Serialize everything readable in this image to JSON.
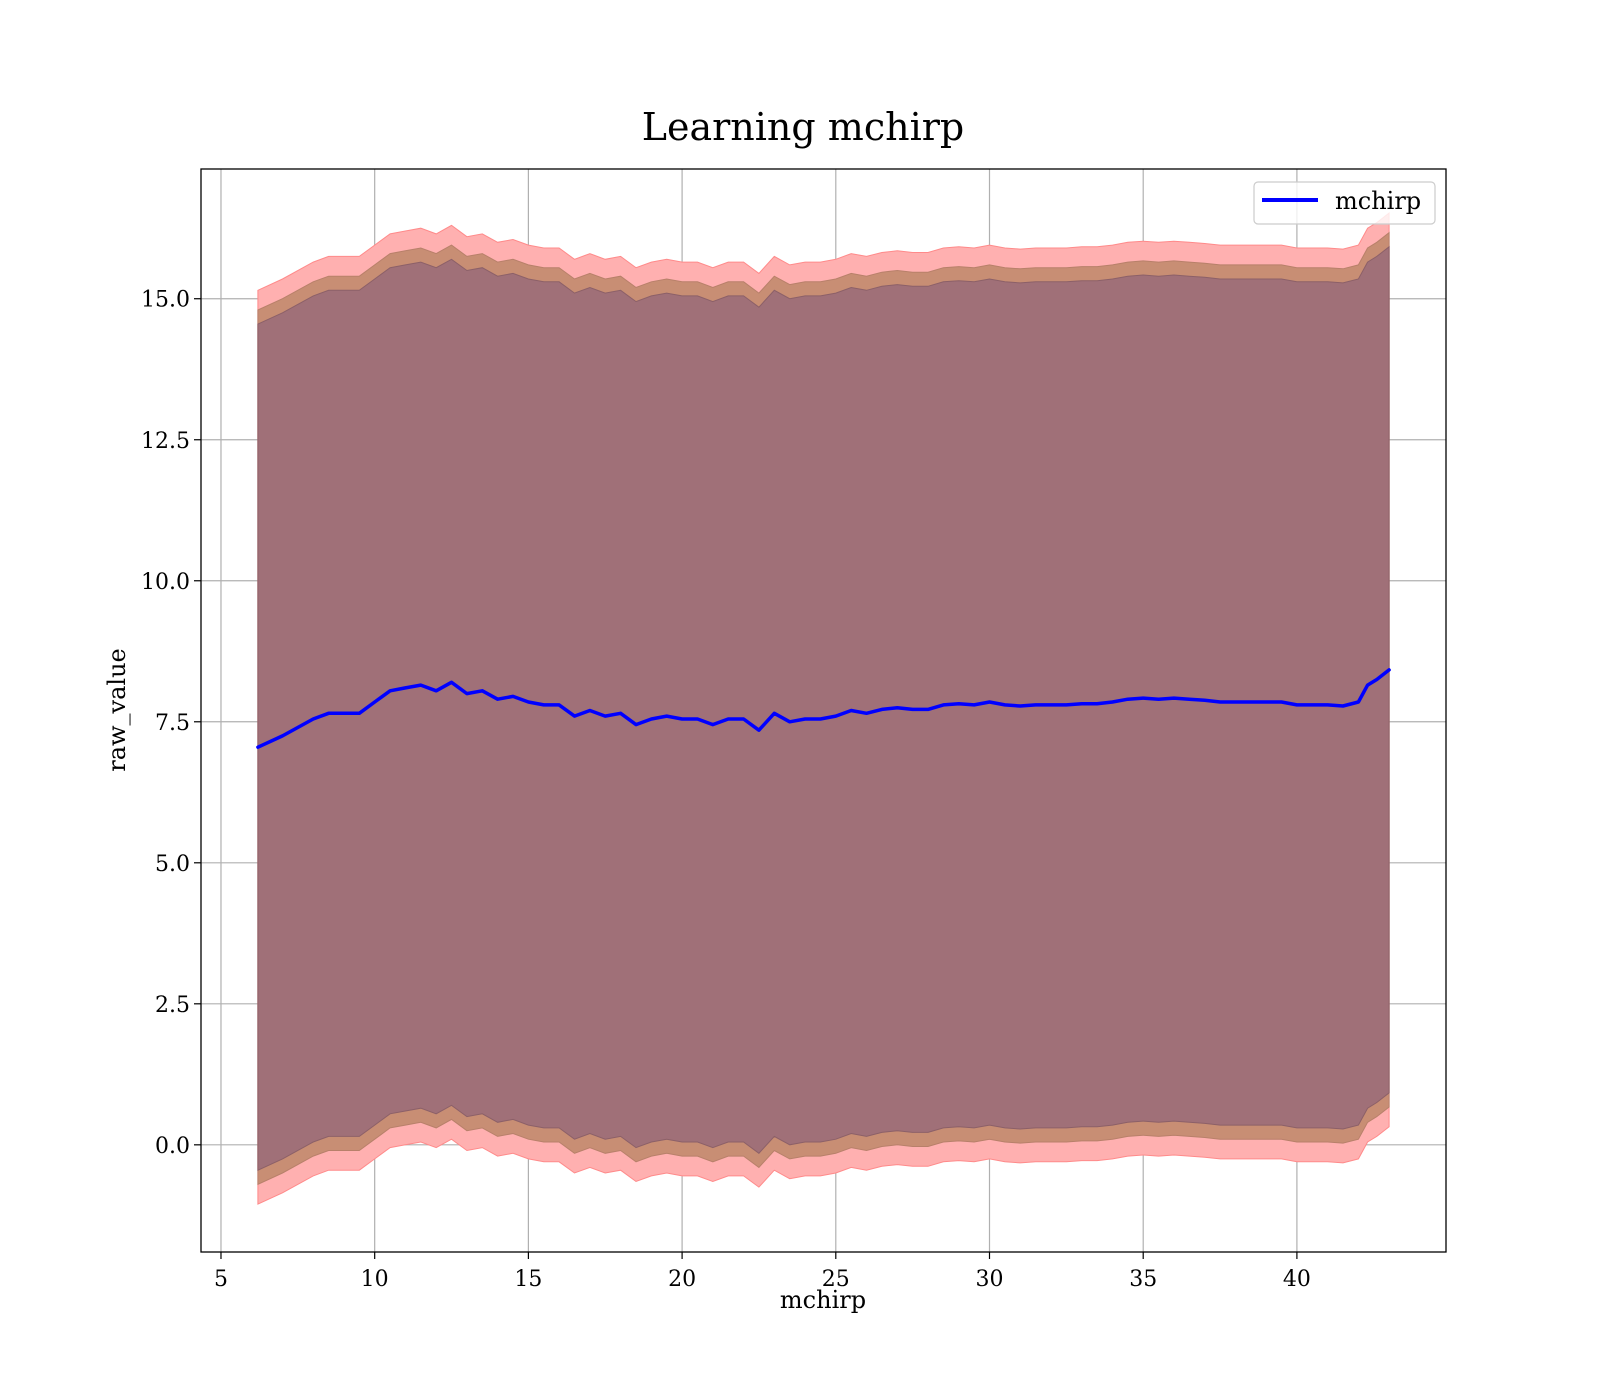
{
  "chart_data": {
    "type": "line",
    "title": "Learning mchirp",
    "xlabel": "mchirp",
    "ylabel": "raw_value",
    "xlim": [
      4.35,
      44.85
    ],
    "ylim": [
      -1.9,
      17.3
    ],
    "xticks": [
      5,
      10,
      15,
      20,
      25,
      30,
      35,
      40
    ],
    "xtick_labels": [
      "5",
      "10",
      "15",
      "20",
      "25",
      "30",
      "35",
      "40"
    ],
    "yticks": [
      0.0,
      2.5,
      5.0,
      7.5,
      10.0,
      12.5,
      15.0
    ],
    "ytick_labels": [
      "0.0",
      "2.5",
      "5.0",
      "7.5",
      "10.0",
      "12.5",
      "15.0"
    ],
    "grid": true,
    "legend": {
      "placement": "top-right",
      "entries": [
        "mchirp"
      ]
    },
    "colors": {
      "line": "#0000ff",
      "band_outer": "#ffb0b0",
      "band_middle": "#c88e74",
      "band_inner": "#a07078"
    },
    "series": [
      {
        "name": "mchirp",
        "x": [
          6.2,
          7.0,
          8.0,
          8.5,
          9.0,
          9.5,
          10.0,
          10.5,
          11.0,
          11.5,
          12.0,
          12.5,
          13.0,
          13.5,
          14.0,
          14.5,
          15.0,
          15.5,
          16.0,
          16.5,
          17.0,
          17.5,
          18.0,
          18.5,
          19.0,
          19.5,
          20.0,
          20.5,
          21.0,
          21.5,
          22.0,
          22.5,
          23.0,
          23.5,
          24.0,
          24.5,
          25.0,
          25.5,
          26.0,
          26.5,
          27.0,
          27.5,
          28.0,
          28.5,
          29.0,
          29.5,
          30.0,
          30.5,
          31.0,
          31.5,
          32.0,
          32.5,
          33.0,
          33.5,
          34.0,
          34.5,
          35.0,
          35.5,
          36.0,
          36.5,
          37.0,
          37.5,
          38.0,
          38.5,
          39.0,
          39.5,
          40.0,
          40.5,
          41.0,
          41.5,
          42.0,
          42.3,
          42.6,
          43.0
        ],
        "y": [
          7.05,
          7.25,
          7.55,
          7.65,
          7.65,
          7.65,
          7.85,
          8.05,
          8.1,
          8.15,
          8.05,
          8.2,
          8.0,
          8.05,
          7.9,
          7.95,
          7.85,
          7.8,
          7.8,
          7.6,
          7.7,
          7.6,
          7.65,
          7.45,
          7.55,
          7.6,
          7.55,
          7.55,
          7.45,
          7.55,
          7.55,
          7.35,
          7.65,
          7.5,
          7.55,
          7.55,
          7.6,
          7.7,
          7.65,
          7.72,
          7.75,
          7.72,
          7.72,
          7.8,
          7.82,
          7.8,
          7.85,
          7.8,
          7.78,
          7.8,
          7.8,
          7.8,
          7.82,
          7.82,
          7.85,
          7.9,
          7.92,
          7.9,
          7.92,
          7.9,
          7.88,
          7.85,
          7.85,
          7.85,
          7.85,
          7.85,
          7.8,
          7.8,
          7.8,
          7.78,
          7.85,
          8.15,
          8.25,
          8.42
        ],
        "band_outer_half_width": 8.1,
        "band_middle_half_width": 7.75,
        "band_inner_half_width": 7.5
      }
    ]
  }
}
